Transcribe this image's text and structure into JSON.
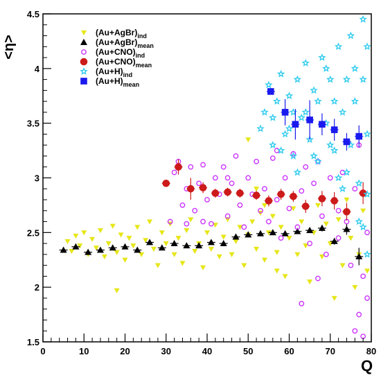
{
  "chart_data": {
    "type": "scatter",
    "title": "",
    "xlabel": "Q",
    "ylabel": "<η>",
    "xlim": [
      0,
      80
    ],
    "ylim": [
      1.5,
      4.5
    ],
    "x_ticks": [
      "0",
      "10",
      "20",
      "30",
      "40",
      "50",
      "60",
      "70",
      "80"
    ],
    "y_ticks": [
      "1.5",
      "2",
      "2.5",
      "3",
      "3.5",
      "4",
      "4.5"
    ],
    "grid": false,
    "legend_position": "top-left",
    "series": [
      {
        "key": "agbr_ind",
        "name": "(Au+AgBr)",
        "subscript": "ind",
        "marker": "triangle-down",
        "color": "#e6e61a",
        "filled": true,
        "points": [
          [
            6,
            2.42
          ],
          [
            7,
            2.33
          ],
          [
            8,
            2.47
          ],
          [
            9,
            2.38
          ],
          [
            10,
            2.5
          ],
          [
            11,
            2.3
          ],
          [
            12,
            2.44
          ],
          [
            13,
            2.36
          ],
          [
            14,
            2.52
          ],
          [
            15,
            2.28
          ],
          [
            16,
            2.4
          ],
          [
            17,
            2.56
          ],
          [
            18,
            2.32
          ],
          [
            19,
            2.48
          ],
          [
            20,
            2.25
          ],
          [
            21,
            2.45
          ],
          [
            22,
            2.38
          ],
          [
            23,
            2.55
          ],
          [
            24,
            2.3
          ],
          [
            25,
            2.43
          ],
          [
            26,
            2.6
          ],
          [
            27,
            2.35
          ],
          [
            28,
            2.2
          ],
          [
            29,
            2.5
          ],
          [
            30,
            2.4
          ],
          [
            31,
            2.58
          ],
          [
            32,
            2.3
          ],
          [
            33,
            2.45
          ],
          [
            34,
            2.22
          ],
          [
            35,
            2.52
          ],
          [
            36,
            2.62
          ],
          [
            37,
            2.33
          ],
          [
            38,
            2.4
          ],
          [
            39,
            2.18
          ],
          [
            40,
            2.5
          ],
          [
            41,
            2.35
          ],
          [
            42,
            2.57
          ],
          [
            43,
            2.28
          ],
          [
            44,
            2.46
          ],
          [
            45,
            2.62
          ],
          [
            46,
            2.3
          ],
          [
            47,
            2.42
          ],
          [
            48,
            2.55
          ],
          [
            49,
            2.2
          ],
          [
            50,
            2.48
          ],
          [
            51,
            2.6
          ],
          [
            52,
            2.35
          ],
          [
            53,
            2.68
          ],
          [
            54,
            2.25
          ],
          [
            55,
            2.5
          ],
          [
            56,
            2.65
          ],
          [
            57,
            2.32
          ],
          [
            58,
            2.55
          ],
          [
            59,
            2.1
          ],
          [
            60,
            2.45
          ],
          [
            61,
            2.72
          ],
          [
            62,
            2.3
          ],
          [
            63,
            2.6
          ],
          [
            64,
            2.38
          ],
          [
            65,
            2.05
          ],
          [
            66,
            2.5
          ],
          [
            67,
            2.75
          ],
          [
            68,
            2.28
          ],
          [
            69,
            2.58
          ],
          [
            70,
            2.4
          ],
          [
            71,
            1.9
          ],
          [
            72,
            2.62
          ],
          [
            73,
            2.2
          ],
          [
            74,
            2.8
          ],
          [
            75,
            2.45
          ],
          [
            76,
            2.0
          ],
          [
            77,
            2.3
          ],
          [
            78,
            2.7
          ],
          [
            79,
            2.15
          ],
          [
            18,
            1.97
          ],
          [
            52,
            2.9
          ],
          [
            50,
            3.35
          ],
          [
            54,
            2.75
          ],
          [
            57,
            2.15
          ]
        ]
      },
      {
        "key": "agbr_mean",
        "name": "(Au+AgBr)",
        "subscript": "mean",
        "marker": "triangle-up",
        "color": "#000000",
        "filled": true,
        "points": [
          [
            5,
            2.34
          ],
          [
            8,
            2.37
          ],
          [
            11,
            2.32
          ],
          [
            14,
            2.34
          ],
          [
            17,
            2.36
          ],
          [
            20,
            2.37
          ],
          [
            23,
            2.34
          ],
          [
            26,
            2.41
          ],
          [
            29,
            2.36
          ],
          [
            32,
            2.4
          ],
          [
            35,
            2.38
          ],
          [
            38,
            2.38
          ],
          [
            41,
            2.41
          ],
          [
            44,
            2.4
          ],
          [
            47,
            2.46
          ],
          [
            50,
            2.48
          ],
          [
            53,
            2.49
          ],
          [
            56,
            2.5
          ],
          [
            59,
            2.49
          ],
          [
            62,
            2.51
          ],
          [
            65,
            2.52
          ],
          [
            68,
            2.54
          ],
          [
            71,
            2.42
          ],
          [
            74,
            2.53
          ],
          [
            77,
            2.28
          ]
        ],
        "errors": [
          0.02,
          0.02,
          0.02,
          0.02,
          0.02,
          0.02,
          0.02,
          0.02,
          0.02,
          0.02,
          0.02,
          0.02,
          0.02,
          0.02,
          0.02,
          0.02,
          0.02,
          0.02,
          0.02,
          0.02,
          0.02,
          0.03,
          0.03,
          0.05,
          0.08
        ]
      },
      {
        "key": "cno_ind",
        "name": "(Au+CNO)",
        "subscript": "ind",
        "marker": "circle",
        "color": "#cc33ff",
        "filled": false,
        "points": [
          [
            31,
            2.6
          ],
          [
            32,
            3.05
          ],
          [
            33,
            3.15
          ],
          [
            34,
            2.75
          ],
          [
            35,
            2.9
          ],
          [
            36,
            3.1
          ],
          [
            37,
            2.7
          ],
          [
            38,
            2.95
          ],
          [
            39,
            3.12
          ],
          [
            40,
            2.8
          ],
          [
            41,
            2.58
          ],
          [
            42,
            3.0
          ],
          [
            43,
            2.85
          ],
          [
            44,
            3.1
          ],
          [
            45,
            2.65
          ],
          [
            46,
            2.95
          ],
          [
            47,
            3.2
          ],
          [
            48,
            2.75
          ],
          [
            49,
            2.55
          ],
          [
            50,
            3.0
          ],
          [
            51,
            2.85
          ],
          [
            52,
            3.15
          ],
          [
            53,
            2.7
          ],
          [
            54,
            2.9
          ],
          [
            55,
            2.6
          ],
          [
            56,
            3.18
          ],
          [
            57,
            2.8
          ],
          [
            58,
            2.45
          ],
          [
            59,
            3.0
          ],
          [
            60,
            2.72
          ],
          [
            61,
            3.22
          ],
          [
            62,
            2.55
          ],
          [
            63,
            2.88
          ],
          [
            64,
            3.1
          ],
          [
            65,
            2.4
          ],
          [
            66,
            2.95
          ],
          [
            67,
            3.15
          ],
          [
            68,
            2.65
          ],
          [
            69,
            2.3
          ],
          [
            70,
            3.0
          ],
          [
            71,
            2.8
          ],
          [
            72,
            2.45
          ],
          [
            73,
            3.05
          ],
          [
            74,
            2.6
          ],
          [
            75,
            2.2
          ],
          [
            76,
            2.9
          ],
          [
            77,
            3.3
          ],
          [
            78,
            2.1
          ],
          [
            79,
            1.9
          ],
          [
            76,
            1.6
          ],
          [
            77,
            1.75
          ],
          [
            78,
            1.55
          ],
          [
            79,
            2.5
          ],
          [
            63,
            1.85
          ],
          [
            67,
            2.08
          ],
          [
            72,
            2.7
          ],
          [
            57,
            3.25
          ],
          [
            45,
            3.0
          ],
          [
            39,
            2.6
          ],
          [
            35,
            2.58
          ]
        ]
      },
      {
        "key": "cno_mean",
        "name": "(Au+CNO)",
        "subscript": "mean",
        "marker": "circle",
        "color": "#cc1a1a",
        "filled": true,
        "points": [
          [
            30,
            2.95
          ],
          [
            33,
            3.1
          ],
          [
            36,
            2.9
          ],
          [
            39,
            2.91
          ],
          [
            42,
            2.86
          ],
          [
            45,
            2.87
          ],
          [
            48,
            2.86
          ],
          [
            52,
            2.84
          ],
          [
            55,
            2.79
          ],
          [
            58,
            2.85
          ],
          [
            61,
            2.83
          ],
          [
            64,
            2.74
          ],
          [
            68,
            2.81
          ],
          [
            71,
            2.79
          ],
          [
            74,
            2.69
          ],
          [
            78,
            2.86
          ]
        ],
        "errors": [
          0.02,
          0.07,
          0.1,
          0.05,
          0.04,
          0.04,
          0.04,
          0.04,
          0.05,
          0.05,
          0.05,
          0.06,
          0.07,
          0.08,
          0.08,
          0.1
        ]
      },
      {
        "key": "h_ind",
        "name": "(Au+H)",
        "subscript": "ind",
        "marker": "star",
        "color": "#33ccee",
        "filled": false,
        "points": [
          [
            54,
            3.6
          ],
          [
            55,
            3.85
          ],
          [
            56,
            3.3
          ],
          [
            57,
            3.7
          ],
          [
            58,
            3.95
          ],
          [
            59,
            3.4
          ],
          [
            60,
            3.75
          ],
          [
            61,
            3.2
          ],
          [
            62,
            3.9
          ],
          [
            63,
            3.55
          ],
          [
            64,
            4.05
          ],
          [
            65,
            3.35
          ],
          [
            66,
            3.8
          ],
          [
            67,
            3.15
          ],
          [
            68,
            4.1
          ],
          [
            69,
            3.5
          ],
          [
            70,
            3.9
          ],
          [
            71,
            3.25
          ],
          [
            72,
            4.2
          ],
          [
            73,
            3.6
          ],
          [
            74,
            3.05
          ],
          [
            75,
            4.3
          ],
          [
            76,
            3.7
          ],
          [
            77,
            2.95
          ],
          [
            78,
            4.45
          ],
          [
            79,
            3.4
          ],
          [
            76,
            4.0
          ],
          [
            78,
            3.9
          ],
          [
            79,
            2.85
          ],
          [
            77,
            2.6
          ],
          [
            75,
            3.3
          ],
          [
            73,
            2.9
          ],
          [
            71,
            3.7
          ],
          [
            69,
            4.0
          ],
          [
            66,
            3.2
          ],
          [
            64,
            3.6
          ],
          [
            60,
            3.45
          ],
          [
            58,
            3.25
          ],
          [
            62,
            3.05
          ],
          [
            79,
            4.2
          ],
          [
            74,
            3.9
          ],
          [
            70,
            3.3
          ],
          [
            67,
            3.7
          ],
          [
            61,
            3.6
          ],
          [
            56,
            3.55
          ],
          [
            53,
            3.45
          ],
          [
            78,
            2.55
          ],
          [
            79,
            2.3
          ],
          [
            72,
            3.0
          ]
        ]
      },
      {
        "key": "h_mean",
        "name": "(Au+H)",
        "subscript": "mean",
        "marker": "square",
        "color": "#1a1aee",
        "filled": true,
        "points": [
          [
            55.5,
            3.79
          ],
          [
            59,
            3.6
          ],
          [
            61.5,
            3.49
          ],
          [
            65,
            3.53
          ],
          [
            68,
            3.49
          ],
          [
            71,
            3.44
          ],
          [
            74,
            3.33
          ],
          [
            77,
            3.38
          ]
        ],
        "errors": [
          0.02,
          0.12,
          0.14,
          0.18,
          0.1,
          0.1,
          0.08,
          0.1
        ]
      }
    ]
  }
}
